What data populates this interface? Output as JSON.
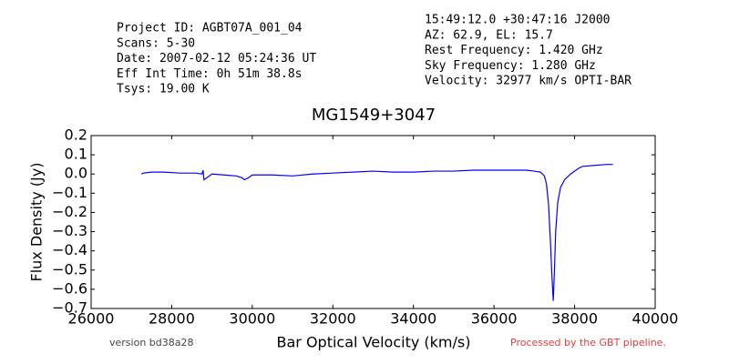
{
  "chart_data": {
    "type": "line",
    "title": "MG1549+3047",
    "info_left": [
      "Project ID: AGBT07A_001_04",
      "Scans: 5-30",
      "Date: 2007-02-12 05:24:36 UT",
      "Eff Int Time: 0h 51m 38.8s",
      "Tsys: 19.00 K"
    ],
    "info_right": [
      "15:49:12.0 +30:47:16 J2000",
      "AZ: 62.9, EL: 15.7",
      "Rest Frequency:   1.420 GHz",
      "Sky Frequency:    1.280 GHz",
      "Velocity: 32977 km/s OPTI-BAR"
    ],
    "footer_left": "version bd38a28",
    "footer_right": "Processed by the GBT pipeline.",
    "xlabel": "Bar Optical Velocity (km/s)",
    "ylabel": "Flux Density (Jy)",
    "xlim": [
      26000,
      40000
    ],
    "xticks": [
      26000,
      28000,
      30000,
      32000,
      34000,
      36000,
      38000,
      40000
    ],
    "ylim": [
      -0.7,
      0.2
    ],
    "yticks": [
      0.2,
      0.1,
      {
        "value": 0,
        "label": "0.0"
      },
      {
        "value": -0.1,
        "label": "−0.1"
      },
      {
        "value": -0.2,
        "label": "−0.2"
      },
      {
        "value": -0.3,
        "label": "−0.3"
      },
      {
        "value": -0.4,
        "label": "−0.4"
      },
      {
        "value": -0.5,
        "label": "−0.5"
      },
      {
        "value": -0.6,
        "label": "−0.6"
      },
      {
        "value": -0.7,
        "label": "−0.7"
      }
    ],
    "x": [
      27250,
      27300,
      27500,
      27800,
      28200,
      28600,
      28750,
      28780,
      28800,
      29000,
      29300,
      29600,
      29750,
      29800,
      29900,
      30000,
      30500,
      31000,
      31500,
      32000,
      32500,
      33000,
      33500,
      34000,
      34500,
      35000,
      35500,
      36000,
      36500,
      36800,
      37000,
      37150,
      37250,
      37300,
      37350,
      37400,
      37430,
      37470,
      37500,
      37530,
      37580,
      37650,
      37750,
      37900,
      38100,
      38200,
      38500,
      38800,
      38950
    ],
    "series": [
      {
        "color": "#0000ff",
        "values": [
          0,
          0.005,
          0.01,
          0.01,
          0.005,
          0.005,
          0,
          0.02,
          -0.03,
          0,
          -0.005,
          -0.01,
          -0.02,
          -0.03,
          -0.02,
          -0.005,
          -0.005,
          -0.01,
          0,
          0.005,
          0.01,
          0.015,
          0.01,
          0.01,
          0.015,
          0.015,
          0.02,
          0.02,
          0.02,
          0.02,
          0.015,
          0.01,
          -0.01,
          -0.05,
          -0.15,
          -0.35,
          -0.5,
          -0.66,
          -0.5,
          -0.3,
          -0.15,
          -0.07,
          -0.03,
          0,
          0.03,
          0.04,
          0.045,
          0.05,
          0.05
        ]
      }
    ]
  }
}
